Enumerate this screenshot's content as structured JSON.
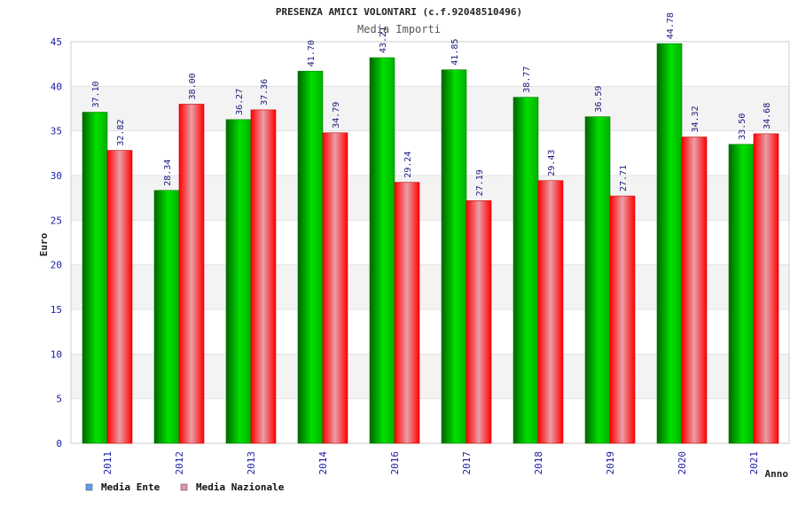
{
  "chart_data": {
    "type": "bar",
    "title": "PRESENZA AMICI VOLONTARI (c.f.92048510496)",
    "subtitle": "Media Importi",
    "xlabel": "Anno",
    "ylabel": "Euro",
    "ylim": [
      0,
      45
    ],
    "yticks": [
      0,
      5,
      10,
      15,
      20,
      25,
      30,
      35,
      40,
      45
    ],
    "ytick_labels": [
      "0",
      "5",
      "10",
      "15",
      "20",
      "25",
      "30",
      "35",
      "40",
      "45"
    ],
    "grid": "horizontal bands",
    "legend_position": "bottom-left",
    "categories": [
      "2011",
      "2012",
      "2013",
      "2014",
      "2016",
      "2017",
      "2018",
      "2019",
      "2020",
      "2021"
    ],
    "series": [
      {
        "name": "Media Ente",
        "color": "#00c000",
        "legend_color": "#5b9bf0",
        "values": [
          37.1,
          28.34,
          36.27,
          41.7,
          43.21,
          41.85,
          38.77,
          36.59,
          44.78,
          33.5
        ],
        "labels": [
          "37.10",
          "28.34",
          "36.27",
          "41.70",
          "43.21",
          "41.85",
          "38.77",
          "36.59",
          "44.78",
          "33.50"
        ]
      },
      {
        "name": "Media Nazionale",
        "color": "#ff1a1a",
        "legend_color": "#e890b8",
        "values": [
          32.82,
          38.0,
          37.36,
          34.79,
          29.24,
          27.19,
          29.43,
          27.71,
          34.32,
          34.68
        ],
        "labels": [
          "32.82",
          "38.00",
          "37.36",
          "34.79",
          "29.24",
          "27.19",
          "29.43",
          "27.71",
          "34.32",
          "34.68"
        ]
      }
    ]
  }
}
